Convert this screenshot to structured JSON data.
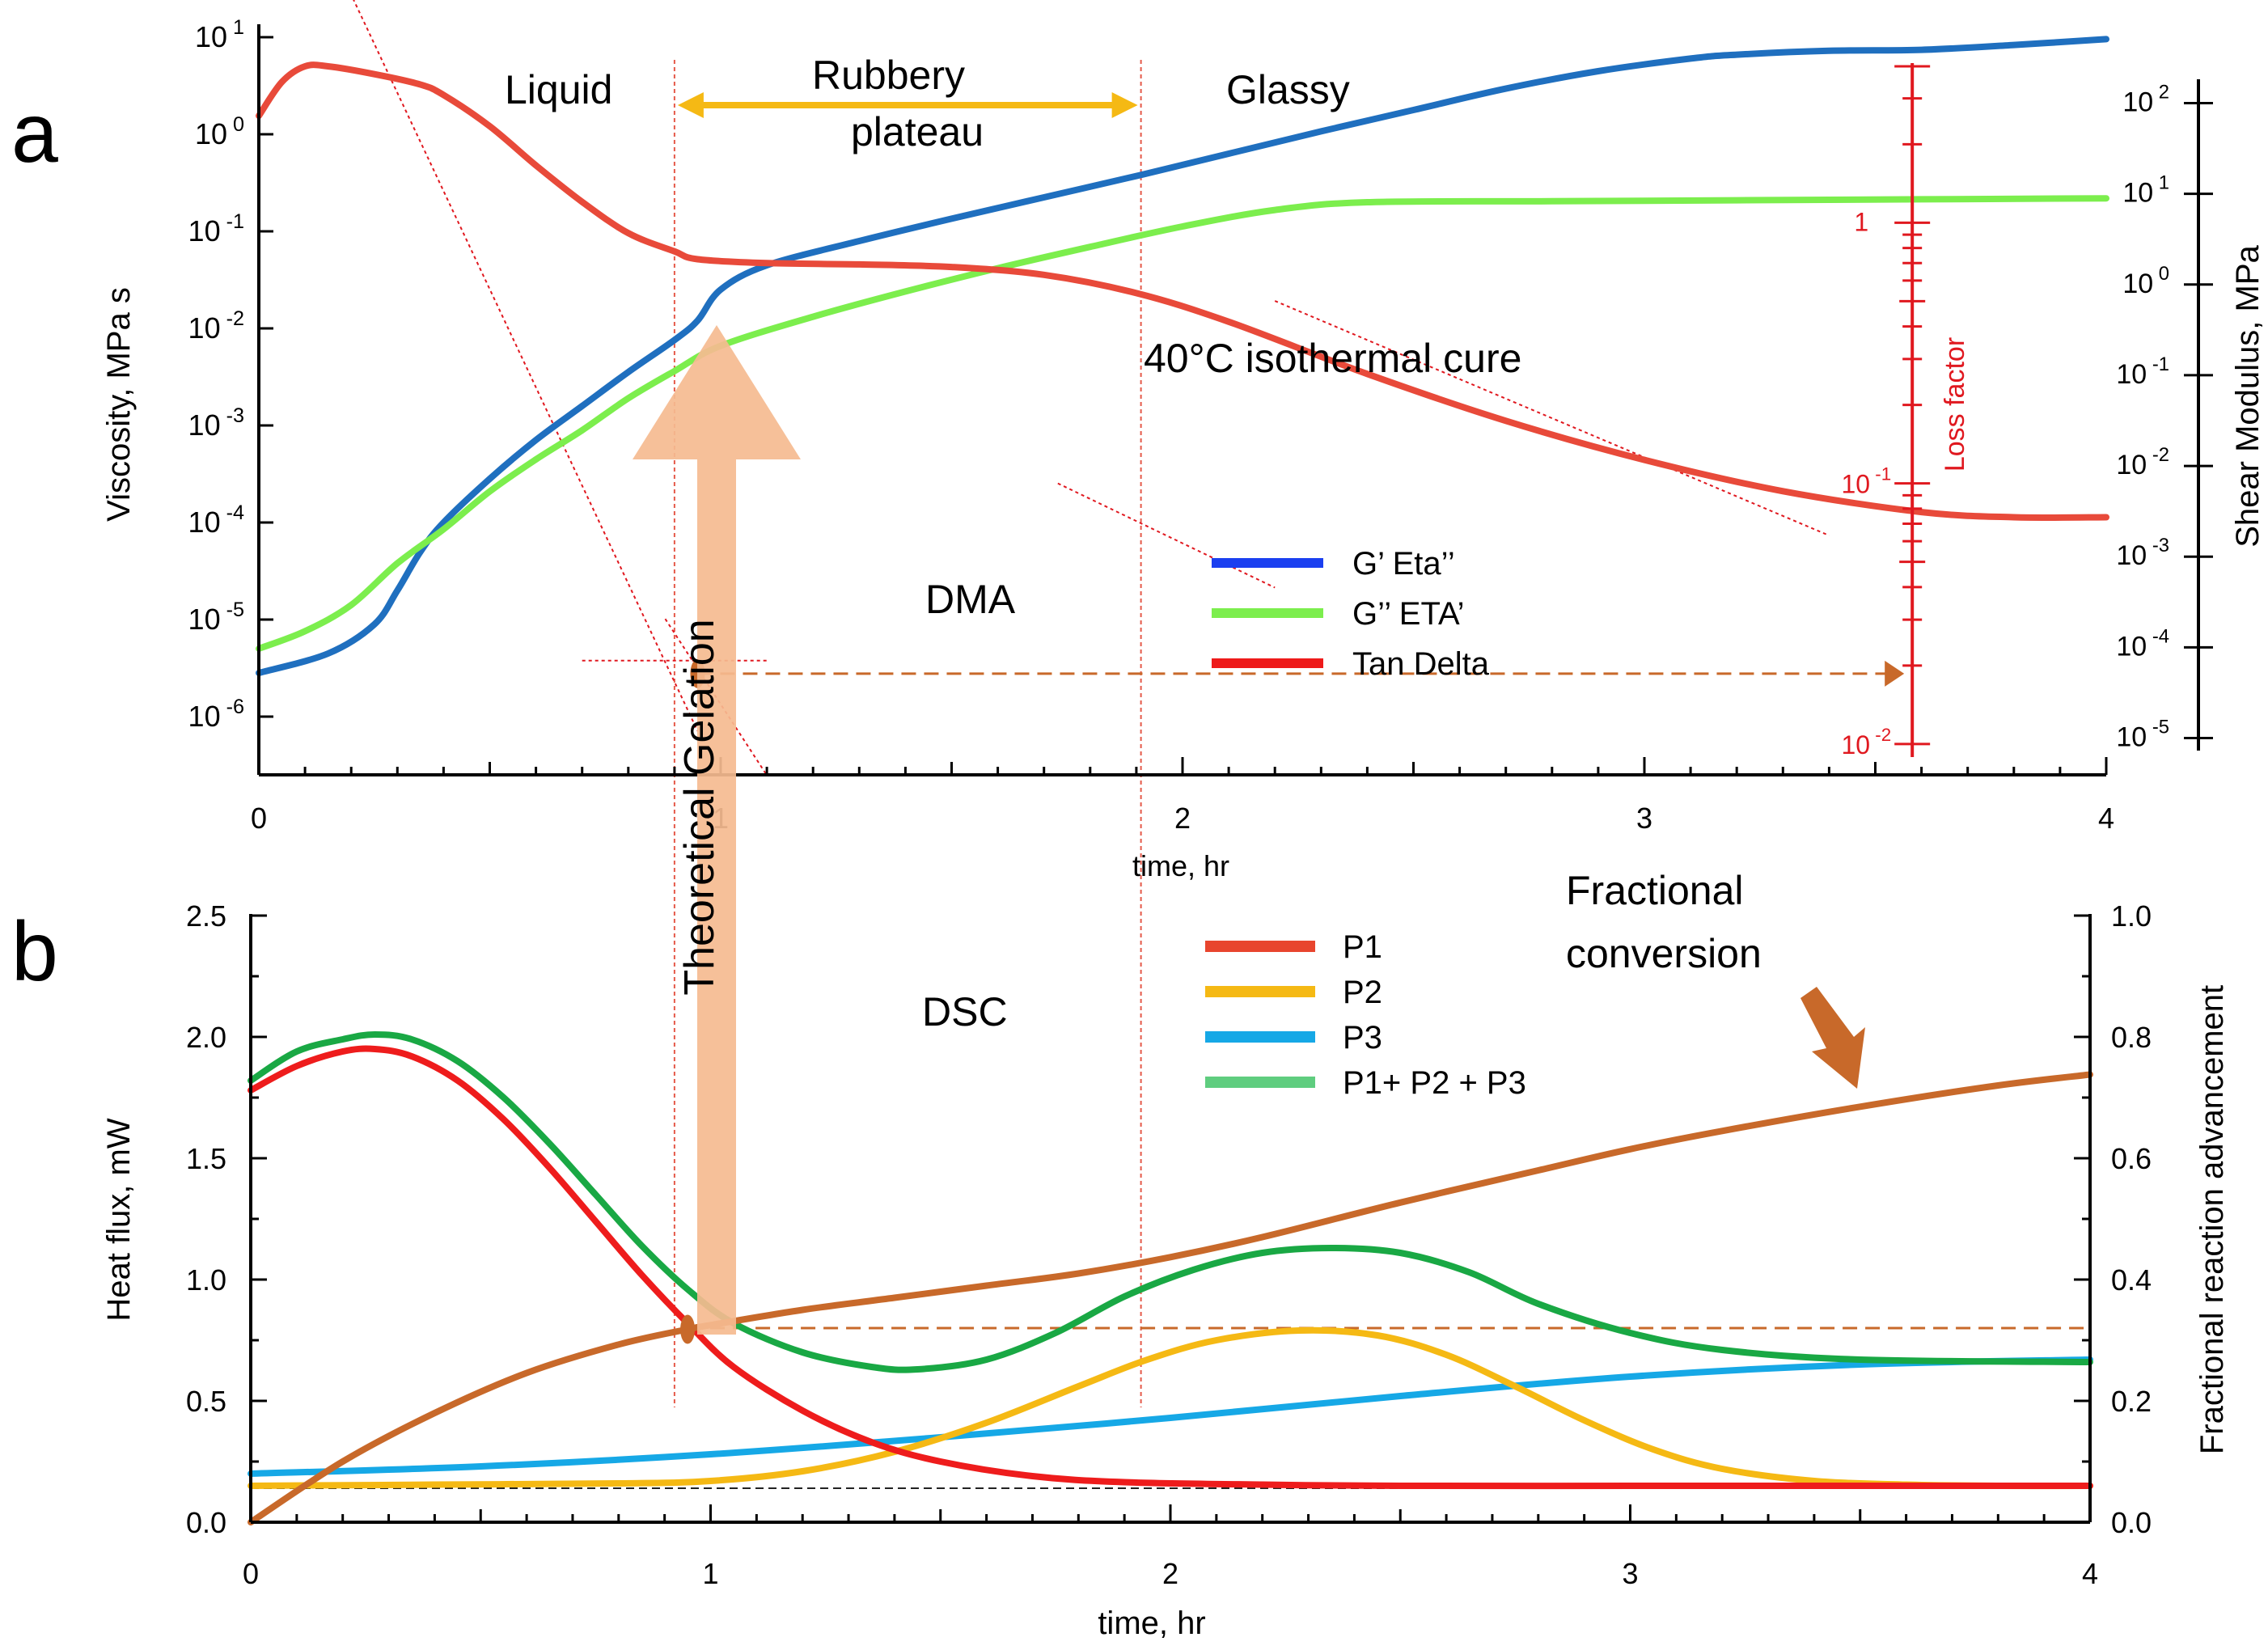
{
  "panel_labels": [
    "a",
    "b"
  ],
  "chart_data": [
    {
      "panel": "a",
      "type": "line",
      "title": "DMA",
      "xlabel": "time, hr",
      "ylabel": "Viscosity, MPa s",
      "ylabel_right": "Shear Modulus, MPa",
      "ylabel_loss": "Loss factor",
      "xlim": [
        0,
        4
      ],
      "x_ticks": [
        "0",
        "1",
        "2",
        "3",
        "4"
      ],
      "ylim_log": [
        -6.6,
        1
      ],
      "y_ticks_left": [
        {
          "base": "10",
          "exp": "1",
          "v": 1
        },
        {
          "base": "10",
          "exp": "0",
          "v": 0
        },
        {
          "base": "10",
          "exp": "-1",
          "v": -1
        },
        {
          "base": "10",
          "exp": "-2",
          "v": -2
        },
        {
          "base": "10",
          "exp": "-3",
          "v": -3
        },
        {
          "base": "10",
          "exp": "-4",
          "v": -4
        },
        {
          "base": "10",
          "exp": "-5",
          "v": -5
        },
        {
          "base": "10",
          "exp": "-6",
          "v": -6
        }
      ],
      "y_ticks_right": [
        {
          "base": "10",
          "exp": "2",
          "v": 2
        },
        {
          "base": "10",
          "exp": "1",
          "v": 1
        },
        {
          "base": "10",
          "exp": "0",
          "v": 0
        },
        {
          "base": "10",
          "exp": "-1",
          "v": -1
        },
        {
          "base": "10",
          "exp": "-2",
          "v": -2
        },
        {
          "base": "10",
          "exp": "-3",
          "v": -3
        },
        {
          "base": "10",
          "exp": "-4",
          "v": -4
        },
        {
          "base": "10",
          "exp": "-5",
          "v": -5
        }
      ],
      "right_axis_log_range": [
        -5.12,
        2.12
      ],
      "loss_factor_ticks": [
        {
          "label": "1",
          "v": 0
        },
        {
          "label": "10-1",
          "base": "10",
          "exp": "-1",
          "v": -1
        },
        {
          "label": "10-2",
          "base": "10",
          "exp": "-2",
          "v": -2
        }
      ],
      "loss_axis_log_range": [
        -2.05,
        0.6
      ],
      "loss_axis_time": 3.58,
      "phase_labels": {
        "liquid": "Liquid",
        "rubbery": "Rubbery",
        "plateau": "plateau",
        "glassy": "Glassy"
      },
      "phase_boundaries_time": [
        0.9,
        1.91
      ],
      "annotations": {
        "isothermal": "40°C isothermal cure",
        "gelation": "Theoretical Gelation"
      },
      "gel_point": {
        "time": 0.95,
        "log_value": -1.73
      },
      "legend": [
        {
          "label": "G’  Eta’’",
          "color": "#1b3ff0"
        },
        {
          "label": "G’’ ETA’",
          "color": "#7cee4d"
        },
        {
          "label": "Tan Delta",
          "color": "#ee1a1a"
        }
      ],
      "series": [
        {
          "name": "G’  Eta’’",
          "axis": "left_log",
          "color": "#1f6fbf",
          "x": [
            0,
            0.15,
            0.25,
            0.3,
            0.35,
            0.4,
            0.5,
            0.6,
            0.7,
            0.8,
            0.9,
            0.95,
            1.0,
            1.1,
            1.3,
            1.5,
            1.7,
            1.9,
            2.1,
            2.3,
            2.5,
            2.7,
            2.9,
            3.1,
            3.2,
            3.4,
            3.6,
            3.8,
            4.0
          ],
          "values": [
            -5.55,
            -5.35,
            -5.05,
            -4.7,
            -4.3,
            -4.0,
            -3.55,
            -3.15,
            -2.8,
            -2.45,
            -2.12,
            -1.92,
            -1.6,
            -1.35,
            -1.1,
            -0.87,
            -0.65,
            -0.43,
            -0.2,
            0.03,
            0.25,
            0.47,
            0.65,
            0.78,
            0.82,
            0.86,
            0.87,
            0.92,
            0.98
          ]
        },
        {
          "name": "G’’ ETA’",
          "axis": "left_log",
          "color": "#7cee4d",
          "x": [
            0,
            0.1,
            0.2,
            0.3,
            0.4,
            0.5,
            0.6,
            0.7,
            0.8,
            0.9,
            1.0,
            1.2,
            1.4,
            1.6,
            1.8,
            2.0,
            2.2,
            2.4,
            2.8,
            3.2,
            3.6,
            4.0
          ],
          "values": [
            -5.3,
            -5.12,
            -4.85,
            -4.42,
            -4.07,
            -3.68,
            -3.35,
            -3.05,
            -2.72,
            -2.44,
            -2.18,
            -1.88,
            -1.62,
            -1.38,
            -1.16,
            -0.95,
            -0.78,
            -0.7,
            -0.69,
            -0.68,
            -0.67,
            -0.66
          ]
        },
        {
          "name": "Tan Delta",
          "axis": "loss_log",
          "color": "#e84a3a",
          "x": [
            0,
            0.05,
            0.1,
            0.15,
            0.25,
            0.35,
            0.4,
            0.5,
            0.6,
            0.7,
            0.8,
            0.9,
            0.95,
            1.1,
            1.3,
            1.5,
            1.7,
            1.9,
            2.1,
            2.4,
            2.7,
            3.0,
            3.3,
            3.6,
            3.8,
            4.0
          ],
          "values": [
            0.41,
            0.54,
            0.6,
            0.6,
            0.57,
            0.53,
            0.49,
            0.37,
            0.22,
            0.08,
            -0.04,
            -0.11,
            -0.14,
            -0.155,
            -0.16,
            -0.17,
            -0.2,
            -0.27,
            -0.38,
            -0.58,
            -0.76,
            -0.91,
            -1.03,
            -1.11,
            -1.13,
            -1.13
          ]
        }
      ]
    },
    {
      "panel": "b",
      "type": "line",
      "title": "DSC",
      "xlabel": "time, hr",
      "ylabel": "Heat flux, mW",
      "ylabel_right": "Fractional reaction advancement",
      "xlim": [
        0,
        4
      ],
      "ylim": [
        0,
        2.5
      ],
      "ylim_right": [
        0,
        1.0
      ],
      "x_ticks": [
        "0",
        "1",
        "2",
        "3",
        "4"
      ],
      "y_ticks_left": [
        "0.0",
        "0.5",
        "1.0",
        "1.5",
        "2.0",
        "2.5"
      ],
      "y_ticks_right": [
        "0.0",
        "0.2",
        "0.4",
        "0.6",
        "0.8",
        "1.0"
      ],
      "annotation": {
        "line1": "Fractional",
        "line2": "conversion"
      },
      "reference_lines": {
        "baseline_heat_flux": 0.14,
        "fraction_at_gel": 0.32
      },
      "legend": [
        {
          "label": "P1",
          "color": "#e8452e"
        },
        {
          "label": "P2",
          "color": "#f5b914"
        },
        {
          "label": "P3",
          "color": "#16a8e6"
        },
        {
          "label": "P1+ P2 + P3",
          "color": "#5fcd7f"
        }
      ],
      "series": [
        {
          "name": "P1",
          "axis": "left",
          "color": "#ee1c1c",
          "x": [
            0,
            0.1,
            0.2,
            0.27,
            0.35,
            0.45,
            0.55,
            0.65,
            0.75,
            0.85,
            0.95,
            1.05,
            1.2,
            1.35,
            1.5,
            1.7,
            1.9,
            2.2,
            2.5,
            3.0,
            3.5,
            4.0
          ],
          "values": [
            1.78,
            1.88,
            1.94,
            1.95,
            1.92,
            1.82,
            1.66,
            1.46,
            1.24,
            1.02,
            0.82,
            0.64,
            0.46,
            0.33,
            0.25,
            0.19,
            0.165,
            0.155,
            0.15,
            0.15,
            0.15,
            0.15
          ]
        },
        {
          "name": "P2",
          "axis": "left",
          "color": "#f5b914",
          "x": [
            0,
            0.4,
            0.8,
            1.0,
            1.2,
            1.4,
            1.6,
            1.8,
            1.95,
            2.1,
            2.28,
            2.45,
            2.6,
            2.75,
            2.9,
            3.05,
            3.2,
            3.4,
            3.6,
            3.8,
            4.0
          ],
          "values": [
            0.15,
            0.155,
            0.16,
            0.17,
            0.21,
            0.29,
            0.41,
            0.56,
            0.67,
            0.75,
            0.79,
            0.77,
            0.69,
            0.56,
            0.42,
            0.3,
            0.22,
            0.17,
            0.155,
            0.15,
            0.15
          ]
        },
        {
          "name": "P3",
          "axis": "left",
          "color": "#16a8e6",
          "x": [
            0,
            0.5,
            1.0,
            1.5,
            2.0,
            2.5,
            3.0,
            3.5,
            4.0
          ],
          "values": [
            0.2,
            0.23,
            0.28,
            0.35,
            0.43,
            0.52,
            0.6,
            0.65,
            0.67
          ]
        },
        {
          "name": "P1+ P2 + P3",
          "axis": "left",
          "color": "#19a844",
          "x": [
            0,
            0.1,
            0.2,
            0.27,
            0.35,
            0.45,
            0.55,
            0.65,
            0.75,
            0.85,
            0.95,
            1.05,
            1.2,
            1.35,
            1.45,
            1.6,
            1.75,
            1.9,
            2.05,
            2.2,
            2.35,
            2.5,
            2.65,
            2.8,
            3.0,
            3.2,
            3.5,
            4.0
          ],
          "values": [
            1.82,
            1.94,
            1.99,
            2.01,
            1.99,
            1.9,
            1.75,
            1.56,
            1.35,
            1.14,
            0.96,
            0.82,
            0.7,
            0.64,
            0.63,
            0.67,
            0.78,
            0.93,
            1.04,
            1.11,
            1.13,
            1.11,
            1.03,
            0.9,
            0.78,
            0.71,
            0.67,
            0.66
          ]
        },
        {
          "name": "Fractional conversion",
          "axis": "right",
          "color": "#c8692a",
          "x": [
            0,
            0.2,
            0.4,
            0.6,
            0.8,
            0.95,
            1.0,
            1.2,
            1.4,
            1.6,
            1.8,
            2.0,
            2.2,
            2.5,
            2.8,
            3.0,
            3.2,
            3.5,
            3.8,
            4.0
          ],
          "values": [
            0.0,
            0.1,
            0.18,
            0.246,
            0.293,
            0.318,
            0.325,
            0.35,
            0.37,
            0.39,
            0.41,
            0.437,
            0.47,
            0.527,
            0.58,
            0.615,
            0.645,
            0.685,
            0.72,
            0.738
          ]
        }
      ]
    }
  ]
}
